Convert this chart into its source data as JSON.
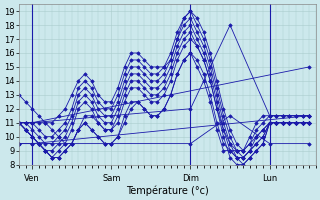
{
  "title": "",
  "xlabel": "Température (°c)",
  "ylabel": "",
  "bg_color": "#cce8ec",
  "plot_bg_color": "#cce8ec",
  "grid_color": "#aacccc",
  "line_color": "#1a1aaa",
  "marker": "D",
  "xlim": [
    0,
    90
  ],
  "ylim": [
    8,
    19.5
  ],
  "yticks": [
    8,
    9,
    10,
    11,
    12,
    13,
    14,
    15,
    16,
    17,
    18,
    19
  ],
  "xtick_positions": [
    4,
    28,
    52,
    76
  ],
  "xtick_labels": [
    "Ven",
    "Sam",
    "Dim",
    "Lun"
  ],
  "vline_positions": [
    4,
    52,
    76
  ],
  "series": [
    {
      "x": [
        0,
        2,
        4,
        6,
        8,
        10,
        12,
        14,
        16,
        18,
        20,
        22,
        24,
        26,
        28,
        30,
        32,
        34,
        36,
        38,
        40,
        42,
        44,
        46,
        48,
        50,
        52,
        54,
        56,
        58,
        60,
        62,
        64,
        66,
        68,
        70,
        72,
        74,
        76,
        78,
        80,
        82,
        84,
        86,
        88
      ],
      "y": [
        11,
        11,
        11,
        11,
        11,
        11,
        11.5,
        12,
        13,
        14,
        14.5,
        14,
        13,
        12.5,
        12.5,
        13.5,
        15,
        16,
        16,
        15.5,
        15,
        15,
        15,
        15.5,
        17,
        18.5,
        19,
        18.5,
        17.5,
        16,
        14,
        12,
        10.5,
        9.5,
        9,
        10,
        11,
        11.5,
        11.5,
        11.5,
        11.5,
        11.5,
        11.5,
        11.5,
        11.5
      ]
    },
    {
      "x": [
        0,
        2,
        4,
        6,
        8,
        10,
        12,
        14,
        16,
        18,
        20,
        22,
        24,
        26,
        28,
        30,
        32,
        34,
        36,
        38,
        40,
        42,
        44,
        46,
        48,
        50,
        52,
        54,
        56,
        58,
        60,
        62,
        64,
        66,
        68,
        70,
        72,
        74,
        76,
        78,
        80,
        82,
        84,
        86,
        88
      ],
      "y": [
        11,
        11,
        11,
        10.5,
        10,
        10,
        10.5,
        11,
        12,
        13.5,
        14,
        13.5,
        12.5,
        12,
        12,
        13,
        14.5,
        15.5,
        15.5,
        15,
        14.5,
        14.5,
        15,
        16,
        17.5,
        18.5,
        19,
        18,
        17,
        15.5,
        13.5,
        11.5,
        10,
        9,
        8.5,
        9,
        9.5,
        10,
        11,
        11,
        11,
        11,
        11,
        11,
        11
      ]
    },
    {
      "x": [
        0,
        2,
        4,
        6,
        8,
        10,
        12,
        14,
        16,
        18,
        20,
        22,
        24,
        26,
        28,
        30,
        32,
        34,
        36,
        38,
        40,
        42,
        44,
        46,
        48,
        50,
        52,
        54,
        56,
        58,
        60,
        62,
        64,
        66,
        68,
        70,
        72,
        74,
        76,
        78,
        80,
        82,
        84,
        86,
        88
      ],
      "y": [
        11,
        11,
        10.5,
        10,
        9.5,
        9.5,
        10,
        10.5,
        11.5,
        13,
        13.5,
        13,
        12,
        11.5,
        11.5,
        12.5,
        14,
        15,
        15,
        14.5,
        14,
        14,
        14.5,
        15.5,
        17,
        18,
        18.5,
        17.5,
        16.5,
        15,
        13,
        11,
        9.5,
        8.5,
        8.5,
        9,
        9.5,
        10,
        11,
        11,
        11,
        11,
        11,
        11,
        11
      ]
    },
    {
      "x": [
        0,
        2,
        4,
        6,
        8,
        10,
        12,
        14,
        16,
        18,
        20,
        22,
        24,
        26,
        28,
        30,
        32,
        34,
        36,
        38,
        40,
        42,
        44,
        46,
        48,
        50,
        52,
        54,
        56,
        58,
        60,
        62,
        64,
        66,
        68,
        70,
        72,
        74,
        76,
        78,
        80,
        82,
        84,
        86,
        88
      ],
      "y": [
        11,
        10.5,
        10,
        9.5,
        9,
        9,
        9.5,
        10,
        11,
        12.5,
        13,
        12.5,
        11.5,
        11,
        11,
        12,
        13.5,
        14.5,
        14.5,
        14,
        13.5,
        13.5,
        14,
        15,
        16.5,
        17.5,
        18,
        17,
        16,
        14.5,
        12.5,
        10.5,
        9,
        8.5,
        8,
        8.5,
        9,
        9.5,
        11,
        11,
        11,
        11,
        11,
        11,
        11
      ]
    },
    {
      "x": [
        0,
        2,
        4,
        6,
        8,
        10,
        12,
        14,
        16,
        18,
        20,
        22,
        24,
        26,
        28,
        30,
        32,
        34,
        36,
        38,
        40,
        42,
        44,
        46,
        48,
        50,
        52,
        54,
        56,
        58,
        60,
        62,
        64,
        66,
        68,
        70,
        72,
        74,
        76,
        78,
        80,
        82,
        84,
        86,
        88
      ],
      "y": [
        11,
        10.5,
        10,
        9.5,
        9,
        8.5,
        9,
        9.5,
        10.5,
        12,
        12.5,
        12,
        11,
        10.5,
        10.5,
        11.5,
        13,
        14,
        14,
        13.5,
        13,
        13,
        13.5,
        14.5,
        16,
        17,
        17.5,
        16.5,
        15.5,
        14,
        12,
        10,
        8.5,
        8,
        8,
        8.5,
        9,
        9.5,
        11,
        11,
        11,
        11,
        11,
        11,
        11
      ]
    },
    {
      "x": [
        0,
        2,
        4,
        6,
        8,
        10,
        12,
        14,
        16,
        18,
        20,
        22,
        24,
        26,
        28,
        30,
        32,
        34,
        36,
        38,
        40,
        42,
        44,
        46,
        48,
        50,
        52,
        54,
        56,
        58,
        60,
        62,
        64,
        66,
        68,
        70,
        72,
        74,
        76,
        78,
        80,
        82,
        84,
        86,
        88
      ],
      "y": [
        13,
        12.5,
        12,
        11.5,
        11,
        10.5,
        10,
        9.5,
        9.5,
        10.5,
        11.5,
        11.5,
        11,
        10.5,
        10.5,
        11,
        12.5,
        13.5,
        13.5,
        13,
        12.5,
        12.5,
        13,
        14,
        15.5,
        16.5,
        17,
        16.5,
        15.5,
        14,
        12,
        10.5,
        9.5,
        9,
        9,
        9.5,
        10.5,
        11,
        11.5,
        11.5,
        11.5,
        11.5,
        11.5,
        11.5,
        11.5
      ]
    },
    {
      "x": [
        0,
        2,
        4,
        6,
        8,
        10,
        12,
        14,
        16,
        18,
        20,
        22,
        24,
        26,
        28,
        30,
        32,
        34,
        36,
        38,
        40,
        42,
        44,
        46,
        48,
        50,
        52,
        54,
        56,
        58,
        60,
        62,
        64,
        66,
        68,
        70,
        72,
        74,
        76,
        78,
        80,
        82,
        84,
        86,
        88
      ],
      "y": [
        11,
        10.5,
        10,
        9.5,
        9,
        8.5,
        8.5,
        9,
        9.5,
        10.5,
        11,
        10.5,
        10,
        9.5,
        9.5,
        10,
        11.5,
        12.5,
        12.5,
        12,
        11.5,
        11.5,
        12,
        13,
        14.5,
        15.5,
        16,
        15.5,
        14.5,
        13,
        11,
        9.5,
        9,
        8.5,
        8.5,
        9,
        10,
        10.5,
        11,
        11,
        11,
        11,
        11,
        11,
        11
      ]
    },
    {
      "x": [
        0,
        2,
        4,
        6,
        8,
        10,
        12,
        14,
        16,
        18,
        20,
        22,
        24,
        26,
        28,
        30,
        32,
        34,
        36,
        38,
        40,
        42,
        44,
        46,
        48,
        50,
        52,
        54,
        56,
        58,
        60,
        62,
        64,
        66,
        68,
        70,
        72,
        74,
        76,
        78,
        80,
        82,
        84,
        86,
        88
      ],
      "y": [
        11,
        10.5,
        10,
        9.5,
        9,
        8.5,
        8.5,
        9,
        9.5,
        10.5,
        11,
        10.5,
        10,
        9.5,
        9.5,
        10,
        11,
        12,
        12.5,
        12,
        11.5,
        11.5,
        12,
        13,
        14.5,
        15.5,
        16,
        15,
        14,
        12.5,
        10.5,
        9,
        9,
        9,
        9,
        9.5,
        10,
        10.5,
        11,
        11,
        11,
        11,
        11,
        11,
        11
      ]
    },
    {
      "x": [
        0,
        4,
        88
      ],
      "y": [
        9.5,
        9.5,
        11.5
      ]
    },
    {
      "x": [
        0,
        4,
        52,
        64,
        76,
        88
      ],
      "y": [
        9.5,
        9.5,
        9.5,
        11.5,
        9.5,
        9.5
      ]
    },
    {
      "x": [
        0,
        4,
        88
      ],
      "y": [
        11,
        11,
        15
      ]
    },
    {
      "x": [
        0,
        4,
        52,
        64,
        76,
        88
      ],
      "y": [
        11,
        11,
        12,
        18,
        11.5,
        11.5
      ]
    }
  ]
}
